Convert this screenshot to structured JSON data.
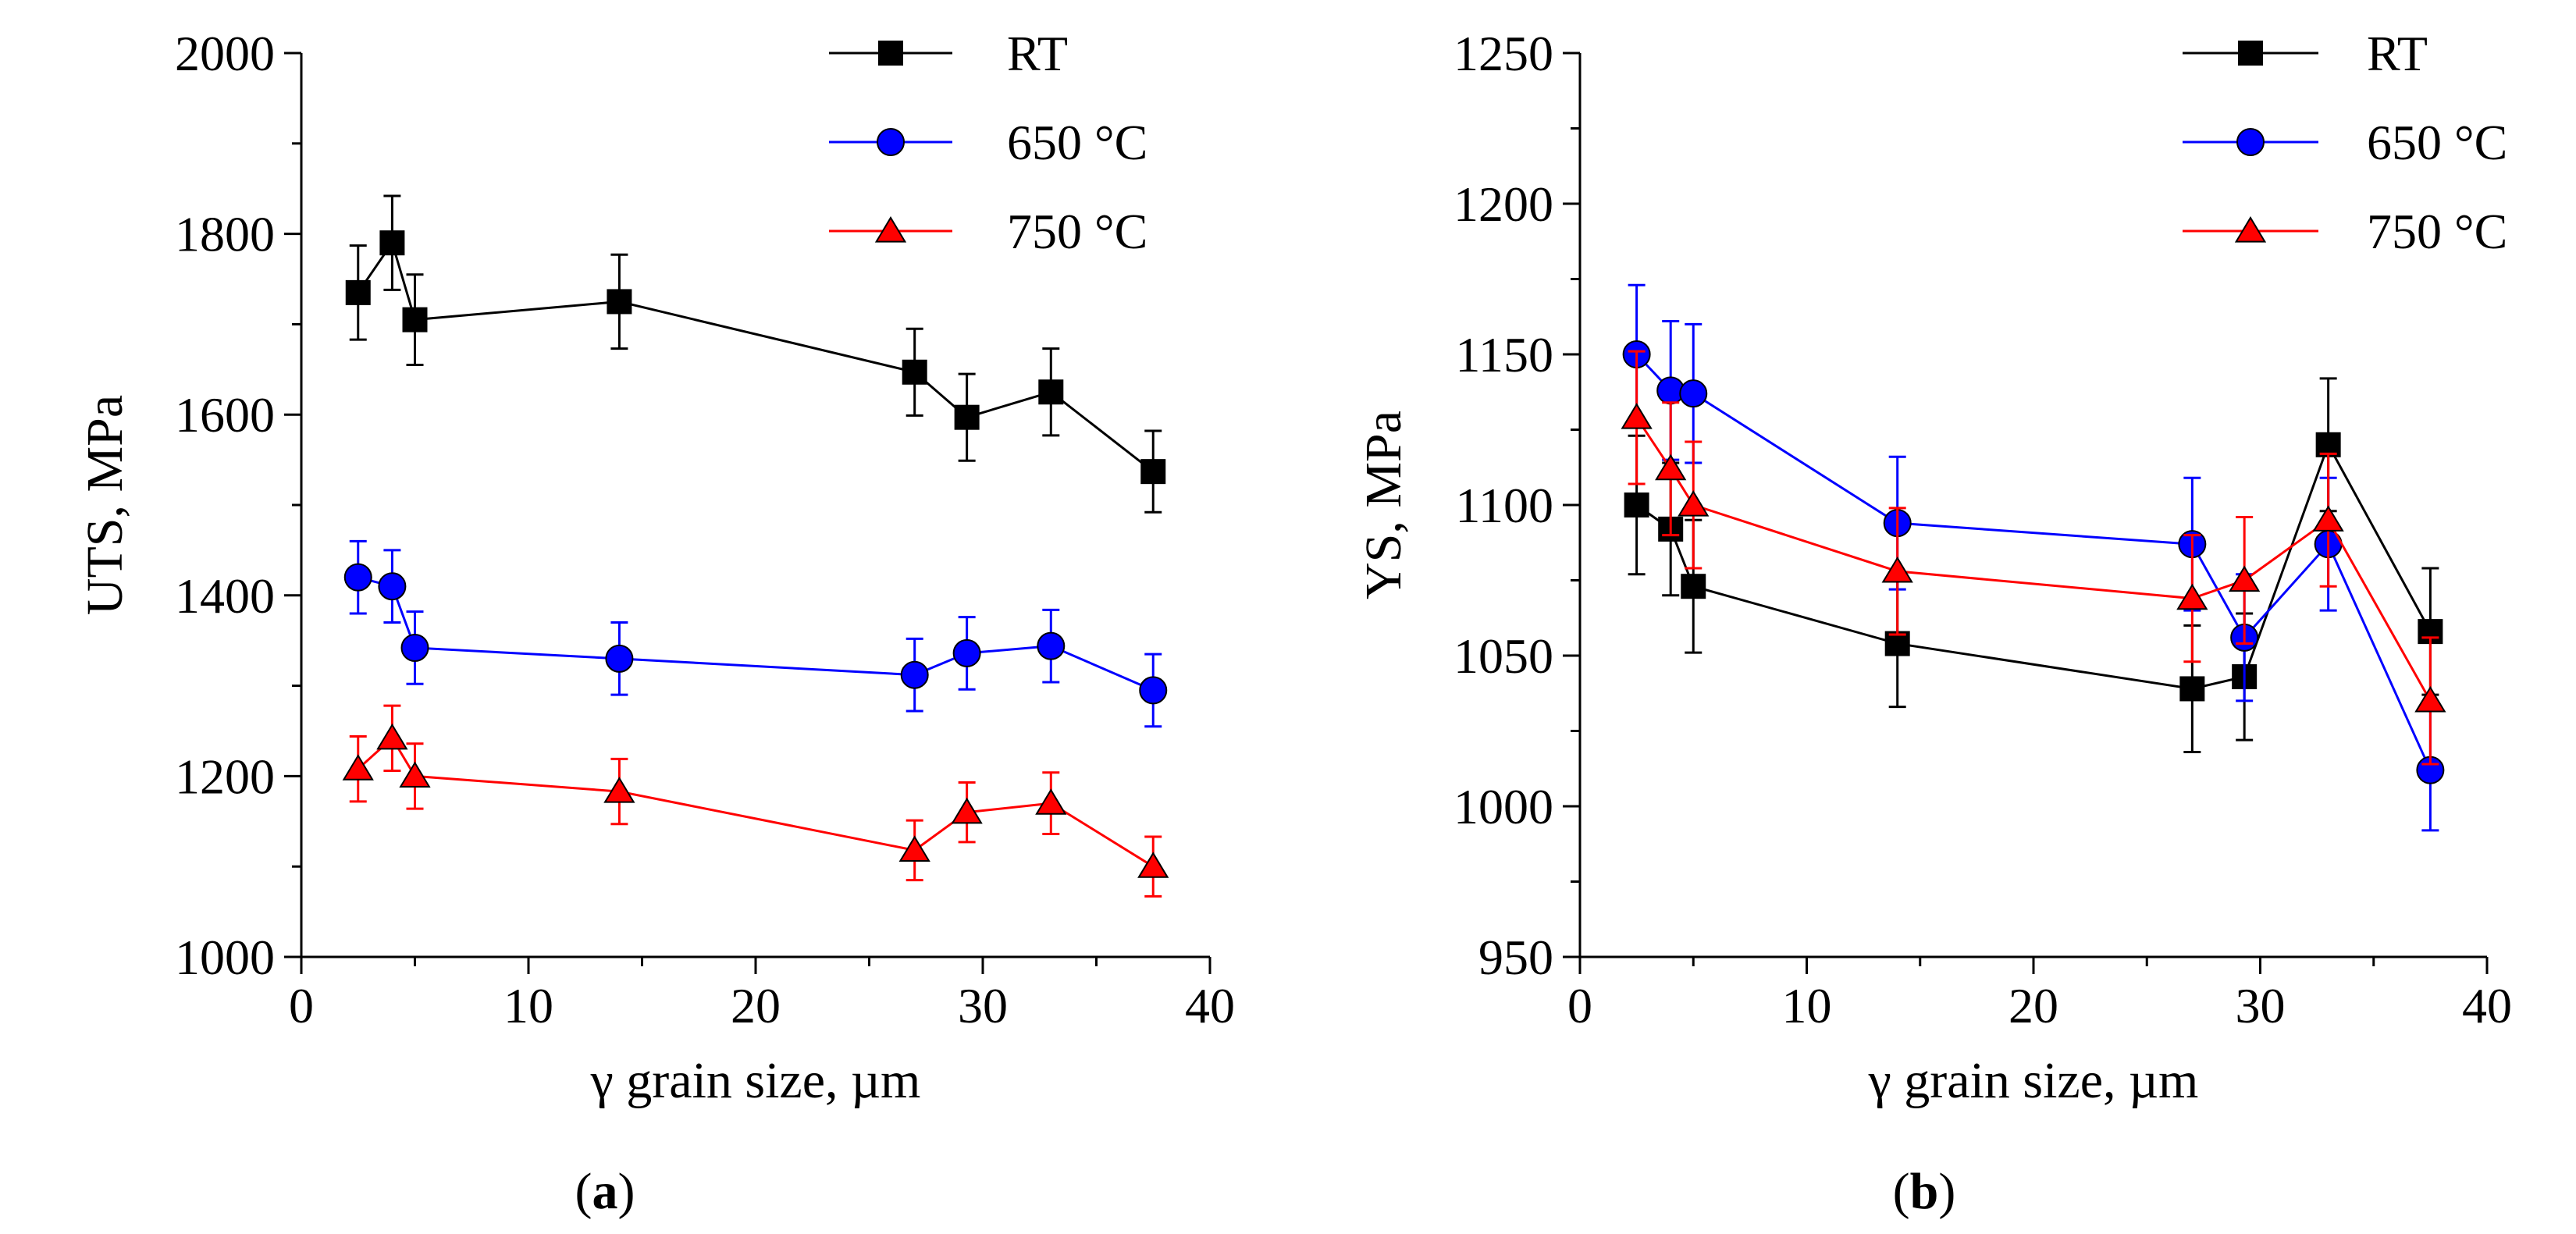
{
  "chart_data": [
    {
      "panel": "a",
      "type": "line",
      "caption_open": "(",
      "caption_letter": "a",
      "caption_close": ")",
      "xlabel": "γ grain size, µm",
      "ylabel": "UTS, MPa",
      "xlim": [
        0,
        40
      ],
      "ylim": [
        1000,
        2000
      ],
      "xticks": [
        0,
        10,
        20,
        30,
        40
      ],
      "yticks": [
        1000,
        1200,
        1400,
        1600,
        1800,
        2000
      ],
      "legend_position": "top-right",
      "series": [
        {
          "name": "RT",
          "color": "#000000",
          "marker": "square",
          "x": [
            2.5,
            4,
            5,
            14,
            27,
            29.3,
            33,
            37.5
          ],
          "y": [
            1735,
            1790,
            1705,
            1725,
            1647,
            1597,
            1625,
            1537
          ],
          "err": [
            52,
            52,
            50,
            52,
            48,
            48,
            48,
            45
          ]
        },
        {
          "name": "650 °C",
          "color": "#0000ff",
          "marker": "circle",
          "x": [
            2.5,
            4,
            5,
            14,
            27,
            29.3,
            33,
            37.5
          ],
          "y": [
            1420,
            1410,
            1342,
            1330,
            1312,
            1336,
            1344,
            1295
          ],
          "err": [
            40,
            40,
            40,
            40,
            40,
            40,
            40,
            40
          ]
        },
        {
          "name": "750 °C",
          "color": "#ff0000",
          "marker": "triangle",
          "x": [
            2.5,
            4,
            5,
            14,
            27,
            29.3,
            33,
            37.5
          ],
          "y": [
            1208,
            1242,
            1200,
            1183,
            1118,
            1160,
            1170,
            1100
          ],
          "err": [
            36,
            36,
            36,
            36,
            33,
            33,
            34,
            33
          ]
        }
      ]
    },
    {
      "panel": "b",
      "type": "line",
      "caption_open": "(",
      "caption_letter": "b",
      "caption_close": ")",
      "xlabel": "γ grain size, µm",
      "ylabel": "YS, MPa",
      "xlim": [
        0,
        40
      ],
      "ylim": [
        950,
        1250
      ],
      "xticks": [
        0,
        10,
        20,
        30,
        40
      ],
      "yticks": [
        950,
        1000,
        1050,
        1100,
        1150,
        1200,
        1250
      ],
      "legend_position": "top-right",
      "series": [
        {
          "name": "RT",
          "color": "#000000",
          "marker": "square",
          "x": [
            2.5,
            4,
            5,
            14,
            27,
            29.3,
            33,
            37.5
          ],
          "y": [
            1100,
            1092,
            1073,
            1054,
            1039,
            1043,
            1120,
            1058
          ],
          "err": [
            23,
            22,
            22,
            21,
            21,
            21,
            22,
            21
          ]
        },
        {
          "name": "650 °C",
          "color": "#0000ff",
          "marker": "circle",
          "x": [
            2.5,
            4,
            5,
            14,
            27,
            29.3,
            33,
            37.5
          ],
          "y": [
            1150,
            1138,
            1137,
            1094,
            1087,
            1056,
            1087,
            1012
          ],
          "err": [
            23,
            23,
            23,
            22,
            22,
            21,
            22,
            20
          ]
        },
        {
          "name": "750 °C",
          "color": "#ff0000",
          "marker": "triangle",
          "x": [
            2.5,
            4,
            5,
            14,
            27,
            29.3,
            33,
            37.5
          ],
          "y": [
            1129,
            1112,
            1100,
            1078,
            1069,
            1075,
            1095,
            1035
          ],
          "err": [
            22,
            22,
            21,
            21,
            21,
            21,
            22,
            21
          ]
        }
      ]
    }
  ]
}
